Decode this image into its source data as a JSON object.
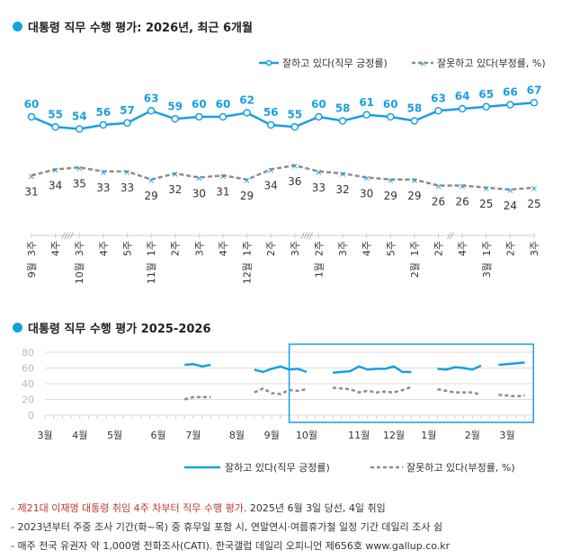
{
  "colors": {
    "positive": "#1a9ee2",
    "negative": "#8c8c8c",
    "highlight": "#1a9ee2"
  },
  "chart_data": [
    {
      "type": "line",
      "title": "대통령 직무 수행 평가: 2026년, 최근 6개월",
      "legend_position": "top-right",
      "categories": [
        "9월 3주",
        "4주",
        "10월 3주",
        "4주",
        "5주",
        "11월 1주",
        "2주",
        "3주",
        "4주",
        "12월 1주",
        "2주",
        "3주",
        "1월 2주",
        "3주",
        "4주",
        "5주",
        "2월 1주",
        "2주",
        "4주",
        "3월 1주",
        "2주",
        "3주"
      ],
      "week_labels": [
        "3주",
        "4주",
        "3주",
        "4주",
        "5주",
        "1주",
        "2주",
        "3주",
        "4주",
        "1주",
        "2주",
        "3주",
        "2주",
        "3주",
        "4주",
        "5주",
        "1주",
        "2주",
        "4주",
        "1주",
        "2주",
        "3주"
      ],
      "month_labels": [
        "9월",
        "",
        "10월",
        "",
        "",
        "11월",
        "",
        "",
        "",
        "12월",
        "",
        "",
        "1월",
        "",
        "",
        "",
        "2월",
        "",
        "",
        "3월",
        "",
        ""
      ],
      "axis_breaks": [
        {
          "after": 1,
          "mark": "////"
        },
        {
          "after": 11,
          "mark": "////"
        },
        {
          "after": 17,
          "mark": "//"
        }
      ],
      "series": [
        {
          "name": "잘하고 있다(직무 긍정률)",
          "values": [
            60,
            55,
            54,
            56,
            57,
            63,
            59,
            60,
            60,
            62,
            56,
            55,
            60,
            58,
            61,
            60,
            58,
            63,
            64,
            65,
            66,
            67
          ]
        },
        {
          "name": "잘못하고 있다(부정률, %)",
          "values": [
            31,
            34,
            35,
            33,
            33,
            29,
            32,
            30,
            31,
            29,
            34,
            36,
            33,
            32,
            30,
            29,
            29,
            26,
            26,
            25,
            24,
            25
          ]
        }
      ]
    },
    {
      "type": "line",
      "title": "대통령 직무 수행 평가 2025-2026",
      "legend_position": "bottom-right",
      "ylim": [
        0,
        80
      ],
      "yticks": [
        0,
        20,
        40,
        60,
        80
      ],
      "grid": true,
      "month_ticks": [
        {
          "label": "3월",
          "week": 0
        },
        {
          "label": "4월",
          "week": 4
        },
        {
          "label": "5월",
          "week": 8
        },
        {
          "label": "6월",
          "week": 13
        },
        {
          "label": "7월",
          "week": 17
        },
        {
          "label": "8월",
          "week": 22
        },
        {
          "label": "9월",
          "week": 26
        },
        {
          "label": "10월",
          "week": 30
        },
        {
          "label": "11월",
          "week": 36
        },
        {
          "label": "12월",
          "week": 40
        },
        {
          "label": "1월",
          "week": 44
        },
        {
          "label": "2월",
          "week": 49
        },
        {
          "label": "3월",
          "week": 53
        }
      ],
      "highlight_weeks": [
        28,
        56
      ],
      "series": [
        {
          "name": "잘하고 있다(직무 긍정률)",
          "segments": [
            {
              "start_week": 16,
              "values": [
                64,
                65,
                62,
                64
              ]
            },
            {
              "start_week": 24,
              "values": [
                58,
                55,
                59,
                62,
                58,
                59,
                55
              ]
            },
            {
              "start_week": 33,
              "values": [
                54,
                55,
                56,
                62,
                58,
                59,
                59,
                62,
                55,
                55
              ]
            },
            {
              "start_week": 45,
              "values": [
                59,
                58,
                61,
                60,
                58,
                63
              ]
            },
            {
              "start_week": 52,
              "values": [
                64,
                65,
                66,
                67
              ]
            }
          ]
        },
        {
          "name": "잘못하고 있다(부정률, %)",
          "segments": [
            {
              "start_week": 16,
              "values": [
                20,
                23,
                23,
                23
              ]
            },
            {
              "start_week": 24,
              "values": [
                29,
                34,
                28,
                27,
                32,
                31,
                33
              ]
            },
            {
              "start_week": 33,
              "values": [
                35,
                34,
                33,
                29,
                31,
                29,
                30,
                29,
                32,
                36
              ]
            },
            {
              "start_week": 45,
              "values": [
                33,
                31,
                29,
                29,
                29,
                26
              ]
            },
            {
              "start_week": 52,
              "values": [
                26,
                25,
                24,
                25
              ]
            }
          ]
        }
      ]
    }
  ],
  "footnotes": {
    "line1_red": "- 제21대 이재명 대통령 취임 4주 차부터 직무 수행 평가",
    "line1_rest": ". 2025년 6월 3일 당선, 4일 취임",
    "line2": "- 2023년부터 주중 조사 기간(화~목) 중 휴무일 포함 시, 연말연시·여름휴가철 일정 기간 데일리 조사 쉼",
    "line3": "- 매주 전국 유권자 약 1,000명 전화조사(CATI). 한국갤럽 데일리 오피니언 제656호 www.gallup.co.kr"
  }
}
